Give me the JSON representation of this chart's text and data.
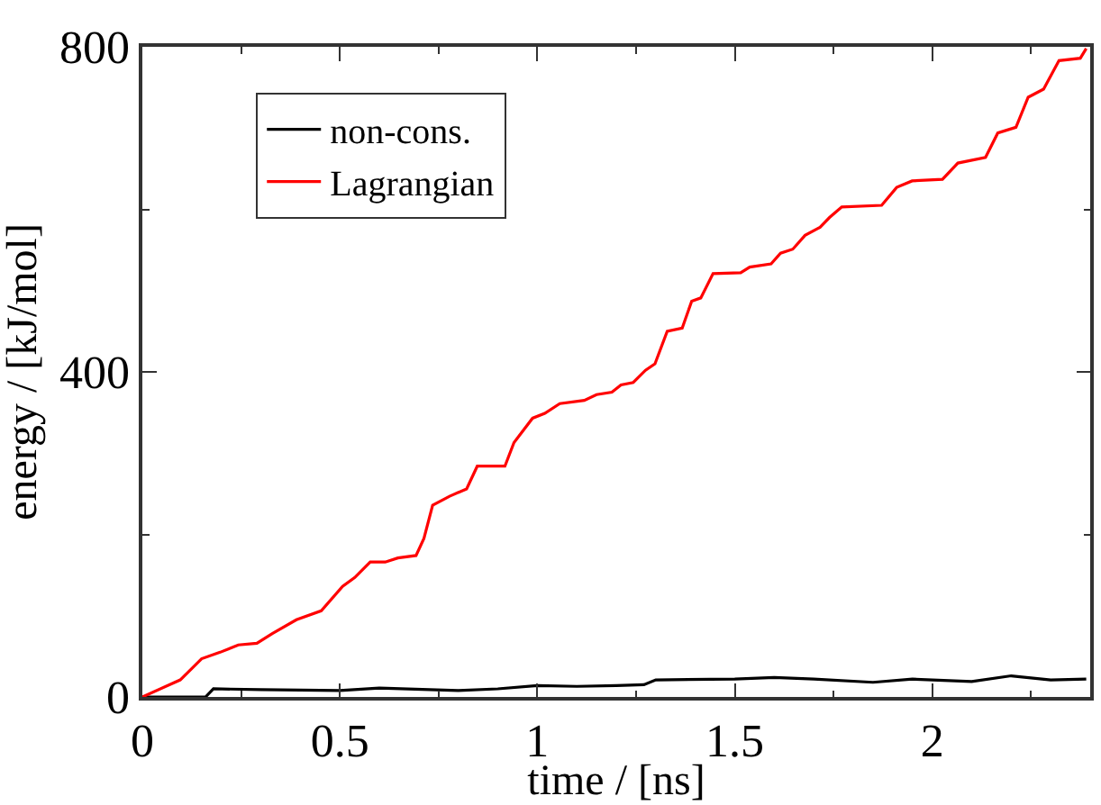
{
  "chart_data": {
    "type": "line",
    "xlabel": "time / [ns]",
    "ylabel": "energy / [kJ/mol]",
    "xlim": [
      0,
      2.4
    ],
    "xticks": [
      0,
      0.5,
      1,
      1.5,
      2
    ],
    "ylim": [
      0,
      800
    ],
    "yticks": [
      0,
      400,
      800
    ],
    "legend": "top left",
    "marker": "none",
    "line_style": "solid",
    "series": [
      {
        "name": "non-cons.",
        "color": "#000000",
        "x": [
          0,
          0.05,
          0.12,
          0.16,
          0.18,
          0.3,
          0.5,
          0.6,
          0.8,
          0.9,
          1.0,
          1.1,
          1.2,
          1.27,
          1.3,
          1.5,
          1.6,
          1.7,
          1.85,
          1.95,
          2.1,
          2.2,
          2.3,
          2.39
        ],
        "values": [
          0,
          0,
          0,
          0,
          10,
          9,
          8,
          11,
          8,
          10,
          14,
          13,
          14,
          15,
          21,
          22,
          24,
          22,
          18,
          22,
          19,
          26,
          21,
          22
        ]
      },
      {
        "name": "Lagrangian",
        "color": "#ff0000",
        "x": [
          0,
          0.096,
          0.15,
          0.197,
          0.243,
          0.29,
          0.329,
          0.39,
          0.453,
          0.507,
          0.538,
          0.577,
          0.615,
          0.647,
          0.693,
          0.713,
          0.735,
          0.778,
          0.821,
          0.848,
          0.918,
          0.941,
          0.988,
          1.019,
          1.057,
          1.119,
          1.15,
          1.189,
          1.212,
          1.243,
          1.274,
          1.298,
          1.329,
          1.367,
          1.391,
          1.414,
          1.445,
          1.515,
          1.538,
          1.592,
          1.616,
          1.647,
          1.678,
          1.716,
          1.74,
          1.771,
          1.872,
          1.91,
          1.949,
          2.026,
          2.065,
          2.135,
          2.166,
          2.212,
          2.243,
          2.282,
          2.321,
          2.375,
          2.39
        ],
        "values": [
          0,
          21,
          47,
          55,
          64,
          66,
          78,
          95,
          106,
          136,
          147,
          166,
          166,
          171,
          174,
          195,
          236,
          247,
          256,
          284,
          284,
          313,
          343,
          349,
          361,
          365,
          372,
          375,
          384,
          387,
          402,
          410,
          450,
          454,
          487,
          491,
          521,
          522,
          529,
          533,
          546,
          551,
          568,
          578,
          590,
          603,
          605,
          627,
          635,
          637,
          657,
          664,
          694,
          701,
          738,
          748,
          783,
          786,
          798
        ]
      }
    ]
  }
}
